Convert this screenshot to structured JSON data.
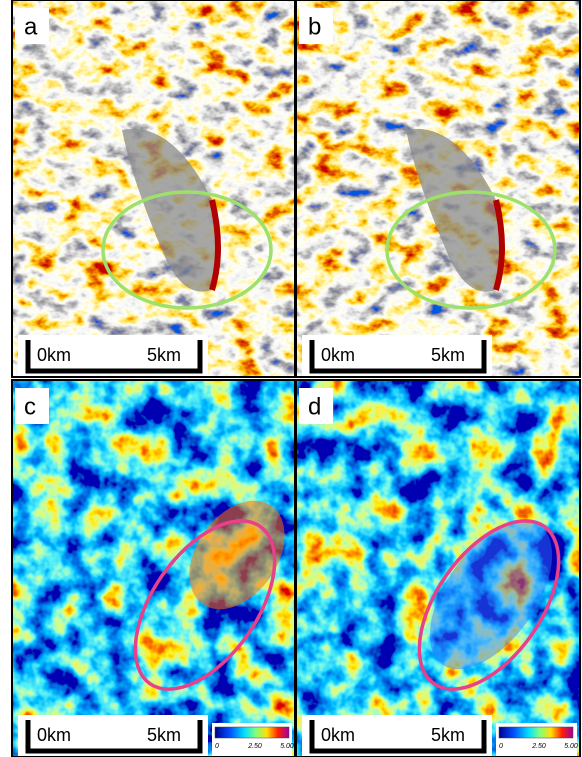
{
  "panels": [
    {
      "label": "a",
      "scale_start": "0km",
      "scale_end": "5km"
    },
    {
      "label": "b",
      "scale_start": "0km",
      "scale_end": "5km"
    },
    {
      "label": "c",
      "scale_start": "0km",
      "scale_end": "5km",
      "colorbar": [
        "0",
        "2.50",
        "5.00"
      ]
    },
    {
      "label": "d",
      "scale_start": "0km",
      "scale_end": "5km",
      "colorbar": [
        "0",
        "2.50",
        "5.00"
      ]
    }
  ]
}
